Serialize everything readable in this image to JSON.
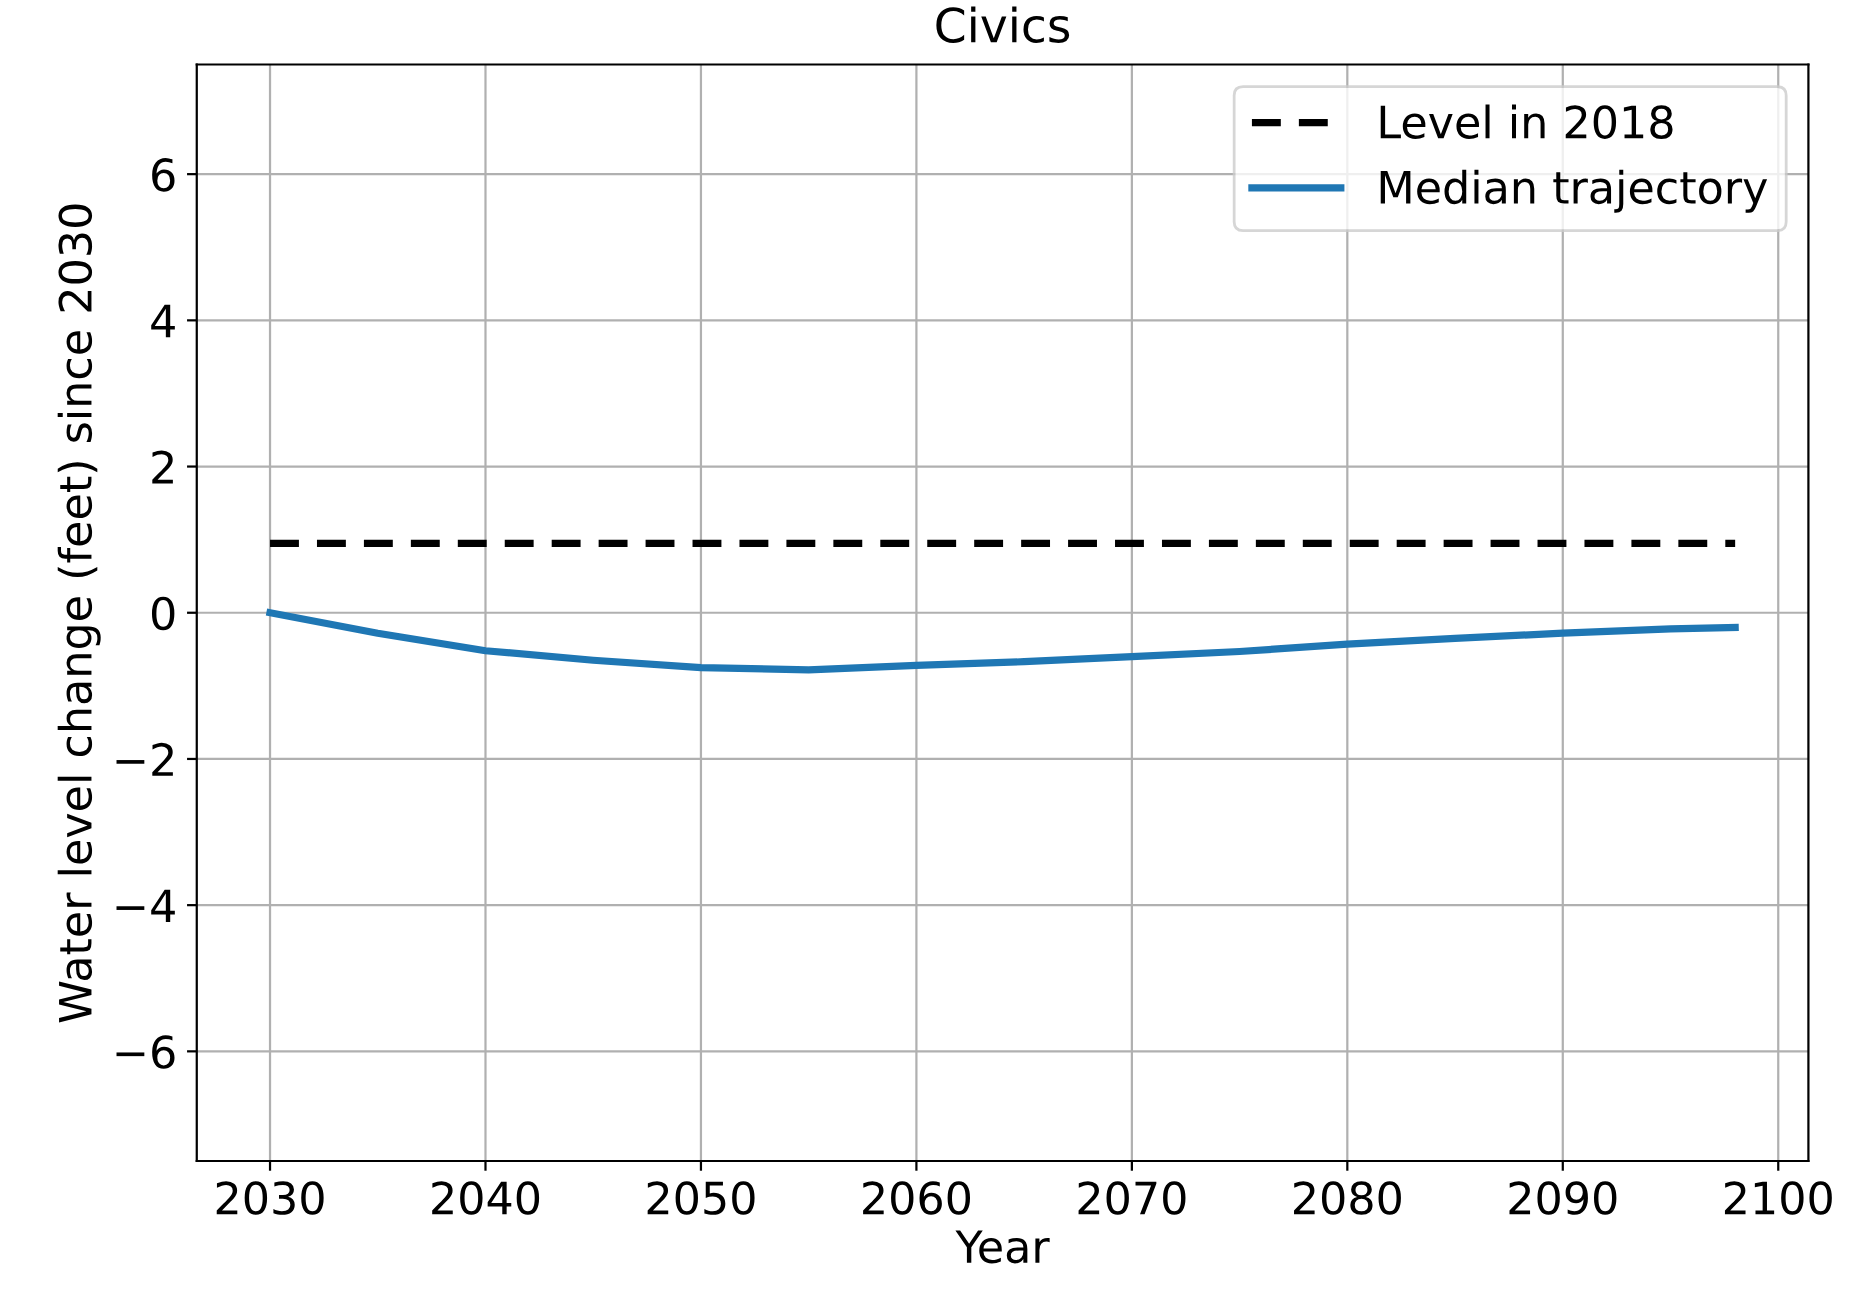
{
  "chart_data": {
    "type": "line",
    "title": "Civics",
    "xlabel": "Year",
    "ylabel": "Water level change (feet) since 2030",
    "series": [
      {
        "name": "Level in 2018",
        "color": "#000000",
        "line_style": "dashed",
        "x": [
          2030,
          2098
        ],
        "values": [
          0.95,
          0.95
        ]
      },
      {
        "name": "Median trajectory",
        "color": "#1f77b4",
        "line_style": "solid",
        "x": [
          2030,
          2035,
          2040,
          2045,
          2050,
          2055,
          2060,
          2065,
          2070,
          2075,
          2080,
          2085,
          2090,
          2095,
          2098
        ],
        "values": [
          0,
          -0.28,
          -0.52,
          -0.65,
          -0.75,
          -0.78,
          -0.72,
          -0.67,
          -0.6,
          -0.53,
          -0.43,
          -0.35,
          -0.28,
          -0.22,
          -0.2
        ]
      }
    ],
    "xlim": [
      2026.6,
      2101.4
    ],
    "xticks": [
      2030,
      2040,
      2050,
      2060,
      2070,
      2080,
      2090,
      2100
    ],
    "ylim": [
      -7.5,
      7.5
    ],
    "yticks": [
      -6,
      -4,
      -2,
      0,
      2,
      4,
      6
    ],
    "grid": true,
    "legend": "top right",
    "marker": "none"
  }
}
